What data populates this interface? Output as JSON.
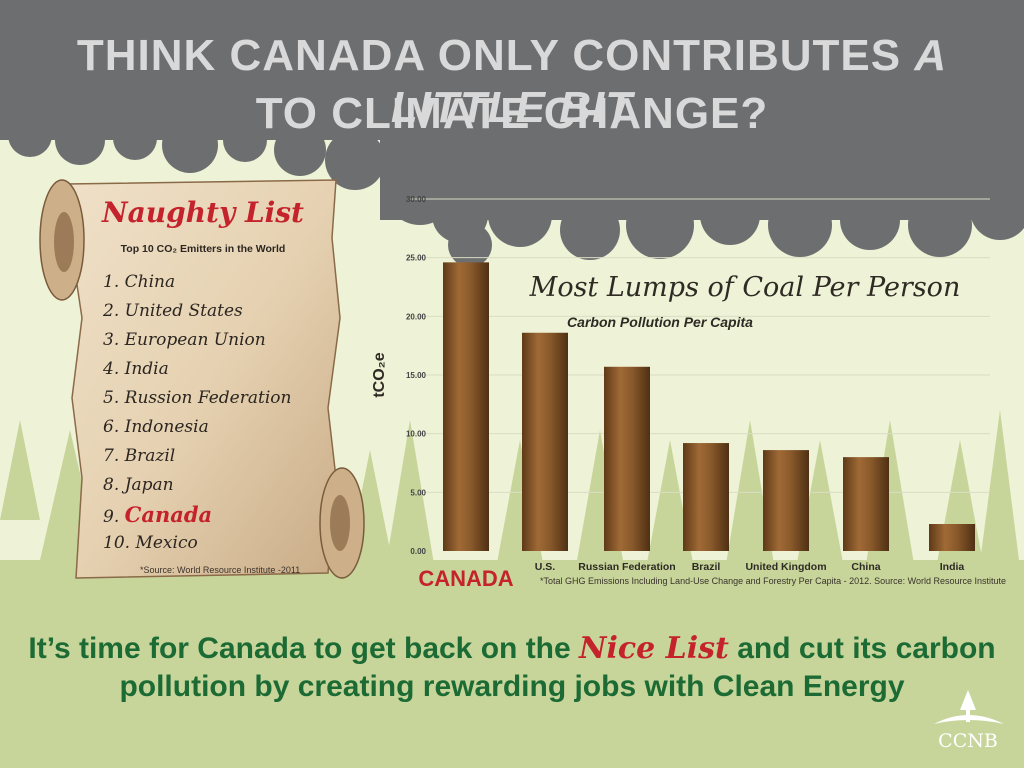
{
  "headline": {
    "line1_prefix": "THINK CANADA ONLY CONTRIBUTES ",
    "line1_emphasis": "A LITTLE BIT",
    "line2": "TO CLIMATE CHANGE?"
  },
  "naughty_list": {
    "title": "Naughty List",
    "subtitle": "Top 10 CO₂ Emitters in the World",
    "items": [
      {
        "num": "1.",
        "name": "China"
      },
      {
        "num": "2.",
        "name": "United States"
      },
      {
        "num": "3.",
        "name": "European Union"
      },
      {
        "num": "4.",
        "name": "India"
      },
      {
        "num": "5.",
        "name": "Russion Federation"
      },
      {
        "num": "6.",
        "name": "Indonesia"
      },
      {
        "num": "7.",
        "name": "Brazil"
      },
      {
        "num": "8.",
        "name": "Japan"
      },
      {
        "num": "9.",
        "name": "Canada"
      },
      {
        "num": "10.",
        "name": "Mexico"
      }
    ],
    "highlight_index": 8,
    "source": "*Source: World Resource Institute -2011"
  },
  "chart_data": {
    "type": "bar",
    "title": "Most Lumps of Coal Per Person",
    "subtitle": "Carbon Pollution Per Capita",
    "ylabel": "tCO₂e",
    "xlabel": "",
    "ylim": [
      0,
      30
    ],
    "yticks": [
      "0.00",
      "5.00",
      "10.00",
      "15.00",
      "20.00",
      "25.00",
      "30.00"
    ],
    "categories": [
      "CANADA",
      "U.S.",
      "Russian Federation",
      "Brazil",
      "United Kingdom",
      "China",
      "India"
    ],
    "values": [
      24.6,
      18.6,
      15.7,
      9.2,
      8.6,
      8.0,
      2.3
    ],
    "grid": true,
    "footnote": "*Total GHG Emissions Including Land-Use Change and Forestry Per Capita - 2012. Source: World Resource Institute"
  },
  "bottom": {
    "line1_prefix": "It’s time for Canada to get back on the ",
    "line1_emphasis": "Nice List",
    "line1_suffix": " and cut its carbon",
    "line2": "pollution by creating rewarding jobs with Clean Energy"
  },
  "logo": {
    "text": "CCNB"
  },
  "colors": {
    "smoke": "#6d6e70",
    "headline": "#d9d9d9",
    "bar": "#8a5a2b",
    "red": "#c4232b",
    "green": "#1d6b34",
    "background": "#eef2d6",
    "trees": "#c7d59a"
  }
}
